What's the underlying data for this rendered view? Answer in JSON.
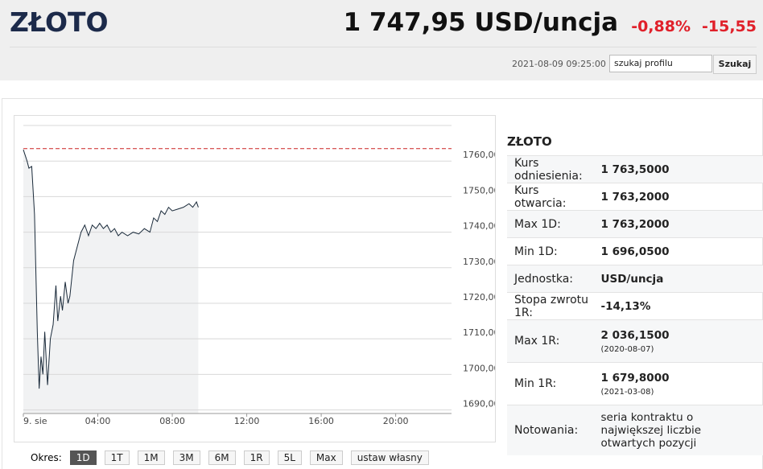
{
  "header": {
    "title": "ZŁOTO",
    "price": "1 747,95 USD/uncja",
    "change_pct": "-0,88%",
    "change_abs": "-15,55",
    "timestamp": "2021-08-09 09:25:00",
    "search_placeholder": "szukaj profilu",
    "search_button": "Szukaj"
  },
  "chart_data": {
    "type": "line",
    "color": "#1a2a3a",
    "area_color": "#f1f2f3",
    "reference": 1763.5,
    "reference_color": "#cc2222",
    "grid": true,
    "x": [
      0,
      0.2,
      0.3,
      0.45,
      0.6,
      0.75,
      0.85,
      0.95,
      1.05,
      1.15,
      1.3,
      1.45,
      1.6,
      1.75,
      1.85,
      2.0,
      2.1,
      2.25,
      2.4,
      2.5,
      2.7,
      2.9,
      3.1,
      3.3,
      3.5,
      3.7,
      3.9,
      4.1,
      4.3,
      4.5,
      4.7,
      4.9,
      5.1,
      5.3,
      5.6,
      5.9,
      6.2,
      6.5,
      6.8,
      7.0,
      7.2,
      7.4,
      7.6,
      7.8,
      8.0,
      8.3,
      8.6,
      8.9,
      9.1,
      9.3,
      9.4
    ],
    "values": [
      1763.2,
      1760,
      1758,
      1758.5,
      1745,
      1712,
      1696,
      1705,
      1700,
      1712,
      1697,
      1710,
      1714,
      1725,
      1715,
      1722,
      1718,
      1726,
      1720,
      1722,
      1732,
      1736,
      1740,
      1742,
      1739,
      1742,
      1741,
      1742.5,
      1741,
      1742,
      1740,
      1741,
      1739,
      1740,
      1739,
      1740,
      1739.5,
      1741,
      1740,
      1744,
      1743,
      1746,
      1745,
      1747,
      1746,
      1746.5,
      1747,
      1748,
      1747,
      1748.5,
      1747
    ],
    "xlim": [
      0,
      23
    ],
    "ylim": [
      1689,
      1770
    ],
    "xticks": [
      {
        "value": 0,
        "label": "9. sie"
      },
      {
        "value": 4,
        "label": "04:00"
      },
      {
        "value": 8,
        "label": "08:00"
      },
      {
        "value": 12,
        "label": "12:00"
      },
      {
        "value": 16,
        "label": "16:00"
      },
      {
        "value": 20,
        "label": "20:00"
      }
    ],
    "yticks": [
      {
        "value": 1690,
        "label": "1690,00"
      },
      {
        "value": 1700,
        "label": "1700,00"
      },
      {
        "value": 1710,
        "label": "1710,00"
      },
      {
        "value": 1720,
        "label": "1720,00"
      },
      {
        "value": 1730,
        "label": "1730,00"
      },
      {
        "value": 1740,
        "label": "1740,00"
      },
      {
        "value": 1750,
        "label": "1750,00"
      },
      {
        "value": 1760,
        "label": "1760,00"
      }
    ]
  },
  "periods": {
    "label": "Okres:",
    "buttons": [
      "1D",
      "1T",
      "1M",
      "3M",
      "6M",
      "1R",
      "5L",
      "Max",
      "ustaw własny"
    ],
    "active": 0
  },
  "table": {
    "title": "ZŁOTO",
    "rows": [
      {
        "label": "Kurs odniesienia:",
        "value": "1 763,5000"
      },
      {
        "label": "Kurs otwarcia:",
        "value": "1 763,2000"
      },
      {
        "label": "Max 1D:",
        "value": "1 763,2000"
      },
      {
        "label": "Min 1D:",
        "value": "1 696,0500"
      },
      {
        "label": "Jednostka:",
        "value": "USD/uncja"
      },
      {
        "label": "Stopa zwrotu 1R:",
        "value": "-14,13%"
      },
      {
        "label": "Max 1R:",
        "value": "2 036,1500",
        "note": "(2020-08-07)"
      },
      {
        "label": "Min 1R:",
        "value": "1 679,8000",
        "note": "(2021-03-08)"
      },
      {
        "label": "Notowania:",
        "value": "seria kontraktu o największej liczbie otwartych pozycji"
      }
    ]
  }
}
